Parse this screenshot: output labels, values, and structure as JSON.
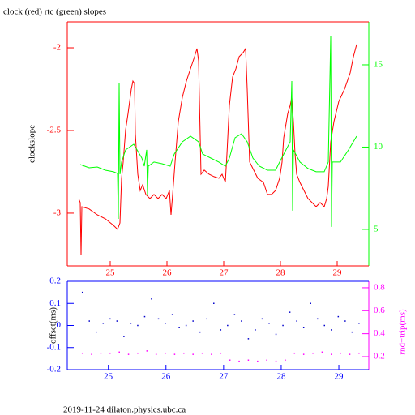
{
  "footer": "2019-11-24 dilaton.physics.ubc.ca",
  "chart_data": [
    {
      "type": "line",
      "title": "clock (red) rtc (green) slopes",
      "ylabel": "clockslope",
      "xlim": [
        24.243,
        29.557
      ],
      "ylim": [
        -3.319,
        -1.843
      ],
      "y2lim": [
        2.78,
        17.61
      ],
      "xticks": [
        25,
        26,
        27,
        28,
        29
      ],
      "yticks": [
        -3,
        -2.5,
        -2
      ],
      "y2ticks": [
        5,
        10,
        15
      ],
      "axis_colors": {
        "x": "#ff0000",
        "y": "#ff0000",
        "y2": "#00ff00"
      },
      "series": [
        {
          "name": "clock",
          "color": "#ff0000",
          "x": [
            24.443,
            24.471,
            24.486,
            24.5,
            24.629,
            24.771,
            24.914,
            25.057,
            25.129,
            25.171,
            25.2,
            25.229,
            25.271,
            25.314,
            25.371,
            25.4,
            25.429,
            25.443,
            25.486,
            25.529,
            25.571,
            25.629,
            25.7,
            25.771,
            25.843,
            25.914,
            25.986,
            26.043,
            26.071,
            26.1,
            26.143,
            26.2,
            26.271,
            26.343,
            26.414,
            26.486,
            26.529,
            26.557,
            26.6,
            26.657,
            26.743,
            26.829,
            26.914,
            26.971,
            27.029,
            27.057,
            27.1,
            27.157,
            27.214,
            27.271,
            27.343,
            27.386,
            27.414,
            27.457,
            27.529,
            27.6,
            27.7,
            27.771,
            27.843,
            27.914,
            27.986,
            28.029,
            28.057,
            28.129,
            28.171,
            28.2,
            28.229,
            28.257,
            28.286,
            28.343,
            28.414,
            28.486,
            28.557,
            28.629,
            28.7,
            28.771,
            28.814,
            28.843,
            28.886,
            28.943,
            29.029,
            29.129,
            29.229,
            29.286,
            29.343
          ],
          "values": [
            -2.912,
            -2.936,
            -3.255,
            -2.961,
            -2.975,
            -3.01,
            -3.034,
            -3.074,
            -3.098,
            -3.059,
            -2.789,
            -2.691,
            -2.495,
            -2.397,
            -2.25,
            -2.201,
            -2.216,
            -2.52,
            -2.765,
            -2.863,
            -2.828,
            -2.887,
            -2.912,
            -2.887,
            -2.912,
            -2.887,
            -2.912,
            -2.863,
            -3.01,
            -2.887,
            -2.691,
            -2.446,
            -2.299,
            -2.201,
            -2.127,
            -2.054,
            -2.005,
            -2.078,
            -2.765,
            -2.74,
            -2.765,
            -2.779,
            -2.789,
            -2.765,
            -2.814,
            -2.642,
            -2.348,
            -2.176,
            -2.127,
            -2.054,
            -2.029,
            -2.005,
            -2.25,
            -2.691,
            -2.74,
            -2.789,
            -2.814,
            -2.887,
            -2.887,
            -2.863,
            -2.789,
            -2.691,
            -2.544,
            -2.397,
            -2.348,
            -2.299,
            -2.446,
            -2.642,
            -2.765,
            -2.814,
            -2.863,
            -2.912,
            -2.936,
            -2.961,
            -2.936,
            -2.961,
            -2.912,
            -2.838,
            -2.569,
            -2.446,
            -2.324,
            -2.25,
            -2.152,
            -2.054,
            -1.98
          ]
        },
        {
          "name": "rtc",
          "color": "#00ff00",
          "axis": "y2",
          "x": [
            24.471,
            24.629,
            24.771,
            24.914,
            25.057,
            25.129,
            25.143,
            25.157,
            25.171,
            25.2,
            25.271,
            25.414,
            25.557,
            25.6,
            25.643,
            25.657,
            25.671,
            25.771,
            25.914,
            26.057,
            26.129,
            26.271,
            26.414,
            26.557,
            26.629,
            26.771,
            26.914,
            27.029,
            27.1,
            27.2,
            27.314,
            27.414,
            27.514,
            27.629,
            27.771,
            27.914,
            27.986,
            28.171,
            28.2,
            28.214,
            28.229,
            28.343,
            28.486,
            28.629,
            28.771,
            28.843,
            28.886,
            28.9,
            28.914,
            29.057,
            29.2,
            29.343
          ],
          "values": [
            8.941,
            8.744,
            8.793,
            8.596,
            8.498,
            8.399,
            5.64,
            13.916,
            8.35,
            9.089,
            9.828,
            10.172,
            9.335,
            8.842,
            9.828,
            7.118,
            8.842,
            9.089,
            8.99,
            8.842,
            9.581,
            10.32,
            10.665,
            10.32,
            9.581,
            9.335,
            9.089,
            8.842,
            9.335,
            10.567,
            10.813,
            10.32,
            9.335,
            8.842,
            8.596,
            8.596,
            9.089,
            10.32,
            14.015,
            6.133,
            9.828,
            9.089,
            8.695,
            8.498,
            8.498,
            9.089,
            16.724,
            5.148,
            9.089,
            9.089,
            9.828,
            10.665
          ]
        }
      ]
    },
    {
      "type": "scatter",
      "ylabel": "offset(ms)",
      "y2label": "rnd−trip(ms)",
      "xlim": [
        24.287,
        29.52
      ],
      "ylim": [
        -0.2,
        0.2
      ],
      "y2lim": [
        0.087,
        0.856
      ],
      "xticks": [
        25,
        26,
        27,
        28,
        29
      ],
      "yticks": [
        -0.2,
        -0.1,
        0,
        0.1,
        0.2
      ],
      "y2ticks": [
        0.2,
        0.4,
        0.6,
        0.8
      ],
      "axis_colors": {
        "x": "#0000ff",
        "y": "#0000ff",
        "y2": "#ff00ff"
      },
      "series": [
        {
          "name": "offset",
          "color": "#0000cc",
          "x": [
            24.55,
            24.67,
            24.79,
            24.91,
            25.03,
            25.15,
            25.27,
            25.39,
            25.51,
            25.63,
            25.75,
            25.87,
            25.99,
            26.11,
            26.23,
            26.35,
            26.47,
            26.59,
            26.71,
            26.83,
            26.95,
            27.07,
            27.19,
            27.31,
            27.43,
            27.55,
            27.67,
            27.79,
            27.91,
            28.03,
            28.15,
            28.27,
            28.39,
            28.51,
            28.63,
            28.75,
            28.87,
            28.99,
            29.11,
            29.23,
            29.35
          ],
          "values": [
            0.15,
            0.02,
            -0.03,
            0.01,
            0.03,
            0.02,
            -0.05,
            0.01,
            0.0,
            0.04,
            0.12,
            0.03,
            0.01,
            0.05,
            -0.01,
            0.0,
            0.02,
            -0.03,
            0.03,
            0.1,
            -0.02,
            0.0,
            0.05,
            0.02,
            -0.06,
            -0.02,
            0.03,
            0.01,
            -0.04,
            0.0,
            0.06,
            0.02,
            -0.01,
            0.1,
            0.03,
            0.0,
            -0.02,
            0.04,
            0.02,
            -0.03,
            0.01
          ]
        },
        {
          "name": "rnd-trip",
          "color": "#ff00ff",
          "axis": "y2",
          "x": [
            24.55,
            24.71,
            24.87,
            25.03,
            25.19,
            25.35,
            25.51,
            25.67,
            25.83,
            25.99,
            26.15,
            26.31,
            26.47,
            26.63,
            26.79,
            26.95,
            27.11,
            27.27,
            27.43,
            27.59,
            27.75,
            27.91,
            28.07,
            28.23,
            28.39,
            28.55,
            28.71,
            28.87,
            29.03,
            29.19,
            29.35
          ],
          "values": [
            0.23,
            0.22,
            0.23,
            0.23,
            0.24,
            0.22,
            0.23,
            0.25,
            0.22,
            0.23,
            0.22,
            0.23,
            0.22,
            0.23,
            0.22,
            0.23,
            0.17,
            0.16,
            0.17,
            0.16,
            0.17,
            0.16,
            0.17,
            0.23,
            0.22,
            0.23,
            0.24,
            0.22,
            0.23,
            0.22,
            0.23
          ]
        }
      ]
    }
  ]
}
